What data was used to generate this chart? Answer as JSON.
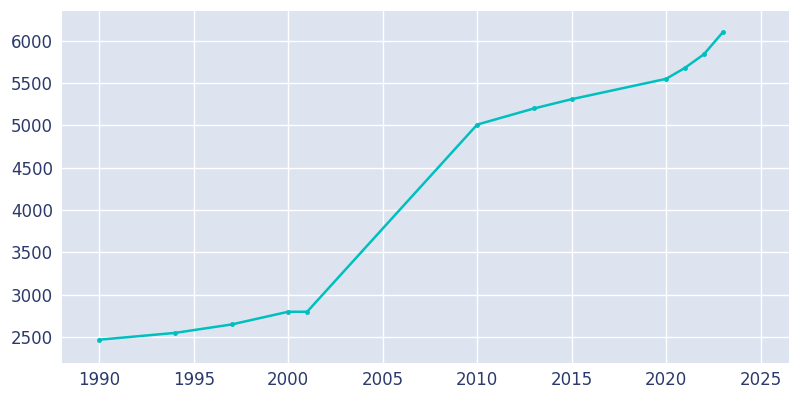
{
  "years": [
    1990,
    1994,
    1997,
    2000,
    2001,
    2010,
    2013,
    2015,
    2020,
    2021,
    2022,
    2023
  ],
  "population": [
    2470,
    2550,
    2650,
    2800,
    2800,
    5010,
    5200,
    5310,
    5550,
    5680,
    5840,
    6100
  ],
  "line_color": "#00BFBF",
  "marker_style": "o",
  "marker_size": 2.5,
  "line_width": 1.8,
  "bg_color": "#DDE4EF",
  "fig_bg_color": "#FFFFFF",
  "xlim": [
    1988,
    2026.5
  ],
  "ylim": [
    2200,
    6350
  ],
  "xticks": [
    1990,
    1995,
    2000,
    2005,
    2010,
    2015,
    2020,
    2025
  ],
  "yticks": [
    2500,
    3000,
    3500,
    4000,
    4500,
    5000,
    5500,
    6000
  ],
  "grid_color": "#FFFFFF",
  "grid_linewidth": 1.0,
  "tick_fontsize": 12,
  "tick_color": "#2B3A6B",
  "spine_visible": false
}
